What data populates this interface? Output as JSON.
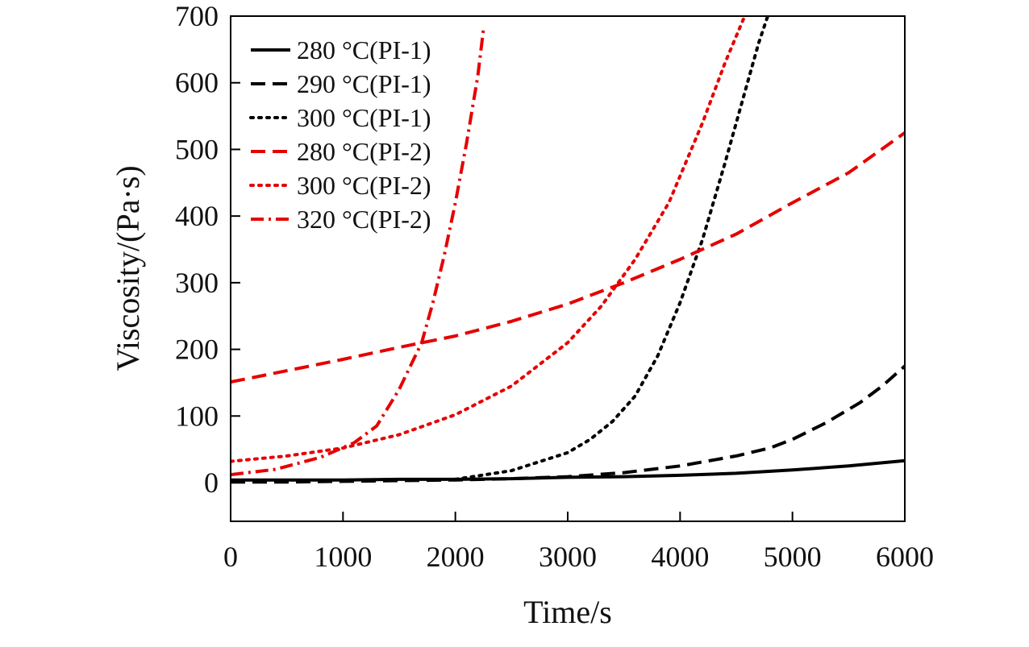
{
  "chart_data": {
    "type": "line",
    "title": "",
    "xlabel": "Time/s",
    "ylabel": "Viscosity/(Pa·s)",
    "xlim": [
      0,
      6000
    ],
    "ylim": [
      -58,
      700
    ],
    "xticks": [
      0,
      1000,
      2000,
      3000,
      4000,
      5000,
      6000
    ],
    "yticks": [
      0,
      100,
      200,
      300,
      400,
      500,
      600,
      700
    ],
    "grid": false,
    "legend_position": "top-left",
    "series": [
      {
        "name": "280 °C(PI-1)",
        "color": "#000000",
        "style": "solid",
        "x": [
          0,
          500,
          1000,
          1500,
          2000,
          2500,
          3000,
          3500,
          4000,
          4500,
          5000,
          5500,
          6000
        ],
        "y": [
          4,
          4,
          4,
          5,
          5,
          6,
          8,
          9,
          11,
          14,
          19,
          25,
          33
        ]
      },
      {
        "name": "290 °C(PI-1)",
        "color": "#000000",
        "style": "dashed",
        "x": [
          0,
          500,
          1000,
          1500,
          2000,
          2500,
          3000,
          3500,
          4000,
          4500,
          4800,
          5000,
          5300,
          5600,
          5800,
          6000
        ],
        "y": [
          1,
          1,
          2,
          3,
          4,
          6,
          9,
          15,
          25,
          40,
          52,
          65,
          90,
          120,
          145,
          175
        ]
      },
      {
        "name": "300 °C(PI-1)",
        "color": "#000000",
        "style": "dotted",
        "x": [
          2000,
          2500,
          3000,
          3200,
          3400,
          3600,
          3800,
          4000,
          4200,
          4400,
          4600,
          4700,
          4800
        ],
        "y": [
          5,
          18,
          45,
          65,
          92,
          130,
          190,
          270,
          365,
          480,
          600,
          660,
          710
        ]
      },
      {
        "name": "280 °C(PI-2)",
        "color": "#e60000",
        "style": "dashed",
        "x": [
          0,
          500,
          1000,
          1500,
          2000,
          2500,
          3000,
          3500,
          4000,
          4500,
          5000,
          5500,
          6000
        ],
        "y": [
          151,
          168,
          185,
          203,
          220,
          242,
          268,
          300,
          335,
          373,
          420,
          465,
          525
        ]
      },
      {
        "name": "300 °C(PI-2)",
        "color": "#e60000",
        "style": "dotted",
        "x": [
          0,
          500,
          1000,
          1500,
          2000,
          2500,
          3000,
          3300,
          3600,
          3900,
          4200,
          4400,
          4600
        ],
        "y": [
          32,
          40,
          52,
          72,
          102,
          145,
          210,
          265,
          335,
          420,
          540,
          630,
          710
        ]
      },
      {
        "name": "320 °C(PI-2)",
        "color": "#e60000",
        "style": "dashdot",
        "x": [
          0,
          400,
          800,
          1100,
          1300,
          1500,
          1700,
          1800,
          1900,
          2000,
          2100,
          2200,
          2250
        ],
        "y": [
          12,
          20,
          38,
          60,
          85,
          140,
          210,
          270,
          340,
          420,
          510,
          610,
          680
        ]
      }
    ]
  }
}
